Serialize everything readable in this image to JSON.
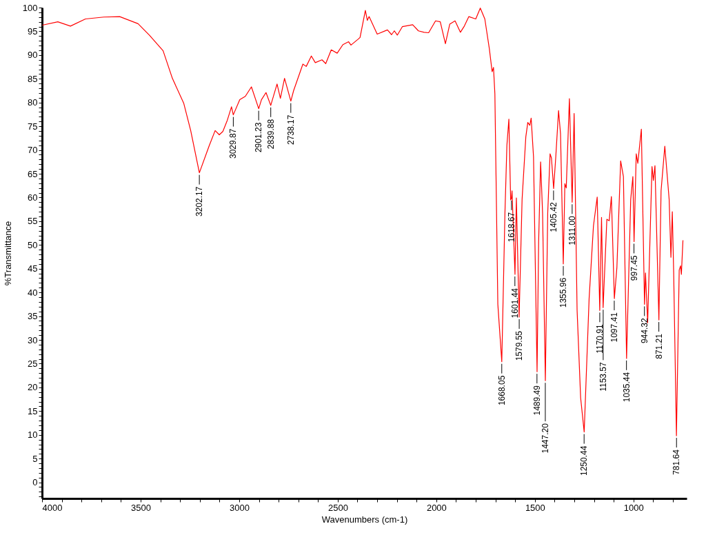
{
  "chart_data": {
    "type": "line",
    "xlabel": "Wavenumbers (cm-1)",
    "ylabel": "%Transmittance",
    "xlim": [
      4000,
      730
    ],
    "ylim": [
      -3.4,
      100
    ],
    "xticks": [
      4000,
      {
        "value": 3900,
        "label": null
      },
      {
        "value": 3800,
        "label": null
      },
      {
        "value": 3700,
        "label": null
      },
      {
        "value": 3600,
        "label": null
      },
      3500,
      {
        "value": 3400,
        "label": null
      },
      {
        "value": 3300,
        "label": null
      },
      {
        "value": 3200,
        "label": null
      },
      {
        "value": 3100,
        "label": null
      },
      3000,
      {
        "value": 2900,
        "label": null
      },
      {
        "value": 2800,
        "label": null
      },
      {
        "value": 2700,
        "label": null
      },
      {
        "value": 2600,
        "label": null
      },
      2500,
      {
        "value": 2400,
        "label": null
      },
      {
        "value": 2300,
        "label": null
      },
      {
        "value": 2200,
        "label": null
      },
      {
        "value": 2100,
        "label": null
      },
      2000,
      {
        "value": 1900,
        "label": null
      },
      {
        "value": 1800,
        "label": null
      },
      {
        "value": 1700,
        "label": null
      },
      {
        "value": 1600,
        "label": null
      },
      1500,
      {
        "value": 1400,
        "label": null
      },
      {
        "value": 1300,
        "label": null
      },
      {
        "value": 1200,
        "label": null
      },
      {
        "value": 1100,
        "label": null
      },
      1000,
      {
        "value": 900,
        "label": null
      },
      {
        "value": 800,
        "label": null
      }
    ],
    "yticks": [
      {
        "value": -3,
        "label": null
      },
      {
        "value": -2,
        "label": null
      },
      {
        "value": -1,
        "label": null
      },
      0,
      {
        "value": 1,
        "label": null
      },
      {
        "value": 2,
        "label": null
      },
      {
        "value": 3,
        "label": null
      },
      {
        "value": 4,
        "label": null
      },
      5,
      {
        "value": 6,
        "label": null
      },
      {
        "value": 7,
        "label": null
      },
      {
        "value": 8,
        "label": null
      },
      {
        "value": 9,
        "label": null
      },
      10,
      {
        "value": 11,
        "label": null
      },
      {
        "value": 12,
        "label": null
      },
      {
        "value": 13,
        "label": null
      },
      {
        "value": 14,
        "label": null
      },
      15,
      {
        "value": 16,
        "label": null
      },
      {
        "value": 17,
        "label": null
      },
      {
        "value": 18,
        "label": null
      },
      {
        "value": 19,
        "label": null
      },
      20,
      {
        "value": 21,
        "label": null
      },
      {
        "value": 22,
        "label": null
      },
      {
        "value": 23,
        "label": null
      },
      {
        "value": 24,
        "label": null
      },
      25,
      {
        "value": 26,
        "label": null
      },
      {
        "value": 27,
        "label": null
      },
      {
        "value": 28,
        "label": null
      },
      {
        "value": 29,
        "label": null
      },
      30,
      {
        "value": 31,
        "label": null
      },
      {
        "value": 32,
        "label": null
      },
      {
        "value": 33,
        "label": null
      },
      {
        "value": 34,
        "label": null
      },
      35,
      {
        "value": 36,
        "label": null
      },
      {
        "value": 37,
        "label": null
      },
      {
        "value": 38,
        "label": null
      },
      {
        "value": 39,
        "label": null
      },
      40,
      {
        "value": 41,
        "label": null
      },
      {
        "value": 42,
        "label": null
      },
      {
        "value": 43,
        "label": null
      },
      {
        "value": 44,
        "label": null
      },
      45,
      {
        "value": 46,
        "label": null
      },
      {
        "value": 47,
        "label": null
      },
      {
        "value": 48,
        "label": null
      },
      {
        "value": 49,
        "label": null
      },
      50,
      {
        "value": 51,
        "label": null
      },
      {
        "value": 52,
        "label": null
      },
      {
        "value": 53,
        "label": null
      },
      {
        "value": 54,
        "label": null
      },
      55,
      {
        "value": 56,
        "label": null
      },
      {
        "value": 57,
        "label": null
      },
      {
        "value": 58,
        "label": null
      },
      {
        "value": 59,
        "label": null
      },
      60,
      {
        "value": 61,
        "label": null
      },
      {
        "value": 62,
        "label": null
      },
      {
        "value": 63,
        "label": null
      },
      {
        "value": 64,
        "label": null
      },
      65,
      {
        "value": 66,
        "label": null
      },
      {
        "value": 67,
        "label": null
      },
      {
        "value": 68,
        "label": null
      },
      {
        "value": 69,
        "label": null
      },
      70,
      {
        "value": 71,
        "label": null
      },
      {
        "value": 72,
        "label": null
      },
      {
        "value": 73,
        "label": null
      },
      {
        "value": 74,
        "label": null
      },
      75,
      {
        "value": 76,
        "label": null
      },
      {
        "value": 77,
        "label": null
      },
      {
        "value": 78,
        "label": null
      },
      {
        "value": 79,
        "label": null
      },
      80,
      {
        "value": 81,
        "label": null
      },
      {
        "value": 82,
        "label": null
      },
      {
        "value": 83,
        "label": null
      },
      {
        "value": 84,
        "label": null
      },
      85,
      {
        "value": 86,
        "label": null
      },
      {
        "value": 87,
        "label": null
      },
      {
        "value": 88,
        "label": null
      },
      {
        "value": 89,
        "label": null
      },
      90,
      {
        "value": 91,
        "label": null
      },
      {
        "value": 92,
        "label": null
      },
      {
        "value": 93,
        "label": null
      },
      {
        "value": 94,
        "label": null
      },
      95,
      {
        "value": 96,
        "label": null
      },
      {
        "value": 97,
        "label": null
      },
      {
        "value": 98,
        "label": null
      },
      {
        "value": 99,
        "label": null
      },
      100
    ],
    "grid": false,
    "series": [
      {
        "color": "#ff0000",
        "x": [
          3999,
          3920,
          3856,
          3780,
          3687,
          3606,
          3513,
          3456,
          3386,
          3339,
          3281,
          3246,
          3202,
          3153,
          3122,
          3101,
          3083,
          3060,
          3039,
          3030,
          2997,
          2969,
          2938,
          2901,
          2887,
          2864,
          2840,
          2808,
          2791,
          2770,
          2738,
          2724,
          2677,
          2660,
          2634,
          2614,
          2580,
          2561,
          2533,
          2503,
          2474,
          2445,
          2433,
          2398,
          2387,
          2360,
          2350,
          2341,
          2300,
          2248,
          2227,
          2213,
          2198,
          2172,
          2120,
          2091,
          2062,
          2039,
          2004,
          1980,
          1954,
          1932,
          1905,
          1878,
          1858,
          1835,
          1800,
          1777,
          1754,
          1731,
          1717,
          1710,
          1703,
          1688,
          1668,
          1652,
          1642,
          1632,
          1623,
          1619,
          1616,
          1601,
          1594,
          1580,
          1565,
          1546,
          1536,
          1526,
          1519,
          1507,
          1489,
          1481,
          1471,
          1461,
          1447,
          1435,
          1423,
          1416,
          1405,
          1394,
          1380,
          1370,
          1356,
          1348,
          1341,
          1325,
          1311,
          1301,
          1286,
          1268,
          1250,
          1225,
          1203,
          1184,
          1171,
          1162,
          1154,
          1135,
          1123,
          1112,
          1097,
          1084,
          1065,
          1051,
          1035,
          1014,
          1003,
          997,
          986,
          978,
          960,
          944,
          939,
          928,
          906,
          899,
          891,
          871,
          860,
          841,
          819,
          810,
          803,
          796,
          782,
          768,
          761,
          757,
          749
        ],
        "values": [
          96.3,
          97.0,
          96.1,
          97.6,
          98.0,
          98.1,
          96.6,
          94.2,
          90.9,
          85.1,
          79.8,
          74.1,
          65.2,
          70.8,
          74.1,
          73.2,
          73.9,
          76.3,
          79.1,
          77.4,
          80.6,
          81.3,
          83.3,
          78.7,
          80.6,
          82.1,
          79.4,
          83.9,
          80.9,
          85.1,
          80.3,
          82.5,
          88.1,
          87.6,
          89.8,
          88.4,
          89.0,
          88.2,
          91.1,
          90.4,
          92.2,
          92.8,
          92.1,
          93.3,
          93.7,
          99.4,
          97.3,
          98.1,
          94.4,
          95.3,
          94.3,
          95.1,
          94.2,
          96.0,
          96.4,
          95.1,
          94.8,
          94.7,
          97.2,
          97.0,
          92.4,
          96.5,
          97.2,
          94.8,
          96.1,
          98.1,
          97.6,
          99.9,
          97.6,
          91.3,
          86.5,
          87.4,
          81.8,
          37.5,
          25.4,
          56.7,
          71.0,
          76.5,
          59.5,
          59.8,
          61.4,
          43.8,
          59.9,
          34.8,
          59.6,
          72.8,
          75.8,
          75.2,
          76.7,
          68.6,
          23.3,
          50.7,
          67.5,
          56.7,
          21.4,
          56.7,
          69.2,
          68.3,
          61.9,
          68.6,
          78.3,
          73.4,
          46.0,
          62.9,
          62.0,
          80.8,
          59.0,
          77.7,
          36.3,
          17.8,
          10.6,
          38.7,
          54.0,
          60.1,
          36.2,
          55.8,
          36.8,
          55.4,
          55.1,
          60.2,
          38.7,
          45.3,
          67.7,
          64.4,
          26.1,
          59.6,
          64.4,
          50.7,
          69.2,
          67.2,
          74.4,
          37.5,
          44.1,
          33.6,
          66.5,
          63.6,
          66.7,
          34.2,
          61.4,
          70.8,
          59.6,
          47.4,
          57.0,
          44.1,
          9.8,
          44.7,
          45.6,
          43.8,
          51.0
        ]
      }
    ],
    "annotations": [
      {
        "text": "3202.17",
        "x": 3202.17,
        "y": 65.2
      },
      {
        "text": "3029.87",
        "x": 3029.87,
        "y": 77.4
      },
      {
        "text": "2901.23",
        "x": 2901.23,
        "y": 78.7
      },
      {
        "text": "2839.88",
        "x": 2839.88,
        "y": 79.4
      },
      {
        "text": "2738.17",
        "x": 2738.17,
        "y": 80.3
      },
      {
        "text": "1668.05",
        "x": 1668.05,
        "y": 25.4
      },
      {
        "text": "1618.67",
        "x": 1618.67,
        "y": 59.8
      },
      {
        "text": "1601.44",
        "x": 1601.44,
        "y": 43.8
      },
      {
        "text": "1579.55",
        "x": 1579.55,
        "y": 34.8
      },
      {
        "text": "1489.49",
        "x": 1489.49,
        "y": 23.3
      },
      {
        "text": "1447.20",
        "x": 1447.2,
        "y": 21.4
      },
      {
        "text": "1405.42",
        "x": 1405.42,
        "y": 61.9
      },
      {
        "text": "1355.96",
        "x": 1355.96,
        "y": 46.0
      },
      {
        "text": "1311.00",
        "x": 1311.0,
        "y": 59.0
      },
      {
        "text": "1250.44",
        "x": 1250.44,
        "y": 10.6
      },
      {
        "text": "1170.91",
        "x": 1170.91,
        "y": 36.2
      },
      {
        "text": "1153.57",
        "x": 1153.57,
        "y": 36.8
      },
      {
        "text": "1097.41",
        "x": 1097.41,
        "y": 38.7
      },
      {
        "text": "1035.44",
        "x": 1035.44,
        "y": 26.1
      },
      {
        "text": "997.45",
        "x": 997.45,
        "y": 50.7
      },
      {
        "text": "944.32",
        "x": 944.32,
        "y": 37.5
      },
      {
        "text": "871.21",
        "x": 871.21,
        "y": 34.2
      },
      {
        "text": "781.64",
        "x": 781.64,
        "y": 9.8
      }
    ]
  }
}
